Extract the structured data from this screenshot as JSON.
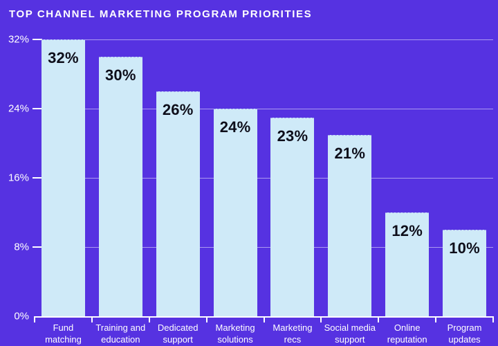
{
  "title": "TOP CHANNEL MARKETING PROGRAM PRIORITIES",
  "chart_data": {
    "type": "bar",
    "title": "TOP CHANNEL MARKETING PROGRAM PRIORITIES",
    "categories": [
      "Fund matching",
      "Training and education",
      "Dedicated support",
      "Marketing solutions",
      "Marketing recs",
      "Social media support",
      "Online reputation",
      "Program updates"
    ],
    "category_label_lines": [
      [
        "Fund",
        "matching"
      ],
      [
        "Training and",
        "education"
      ],
      [
        "Dedicated",
        "support"
      ],
      [
        "Marketing",
        "solutions"
      ],
      [
        "Marketing",
        "recs"
      ],
      [
        "Social media",
        "support"
      ],
      [
        "Online",
        "reputation"
      ],
      [
        "Program",
        "updates"
      ]
    ],
    "values": [
      32,
      30,
      26,
      24,
      23,
      21,
      12,
      10
    ],
    "data_labels": [
      "32%",
      "30%",
      "26%",
      "24%",
      "23%",
      "21%",
      "12%",
      "10%"
    ],
    "xlabel": "",
    "ylabel": "",
    "y_axis": {
      "min": 0,
      "max": 32,
      "ticks": [
        {
          "label": "32%",
          "value": 32
        },
        {
          "label": "24%",
          "value": 24
        },
        {
          "label": "16%",
          "value": 16
        },
        {
          "label": "8%",
          "value": 8
        },
        {
          "label": "0%",
          "value": 0
        }
      ]
    },
    "grid": true,
    "legend": false,
    "layout": {
      "bar_width_fraction": 0.76
    },
    "colors": {
      "background": "#5632E1",
      "bar": "#CFEAF8",
      "data_label": "#0E0E1A",
      "axis": "#FFFFFF",
      "gridline": "rgba(255,255,255,0.5)",
      "axis_text": "#FFFFFF",
      "title_text": "#FFFFFF"
    }
  }
}
